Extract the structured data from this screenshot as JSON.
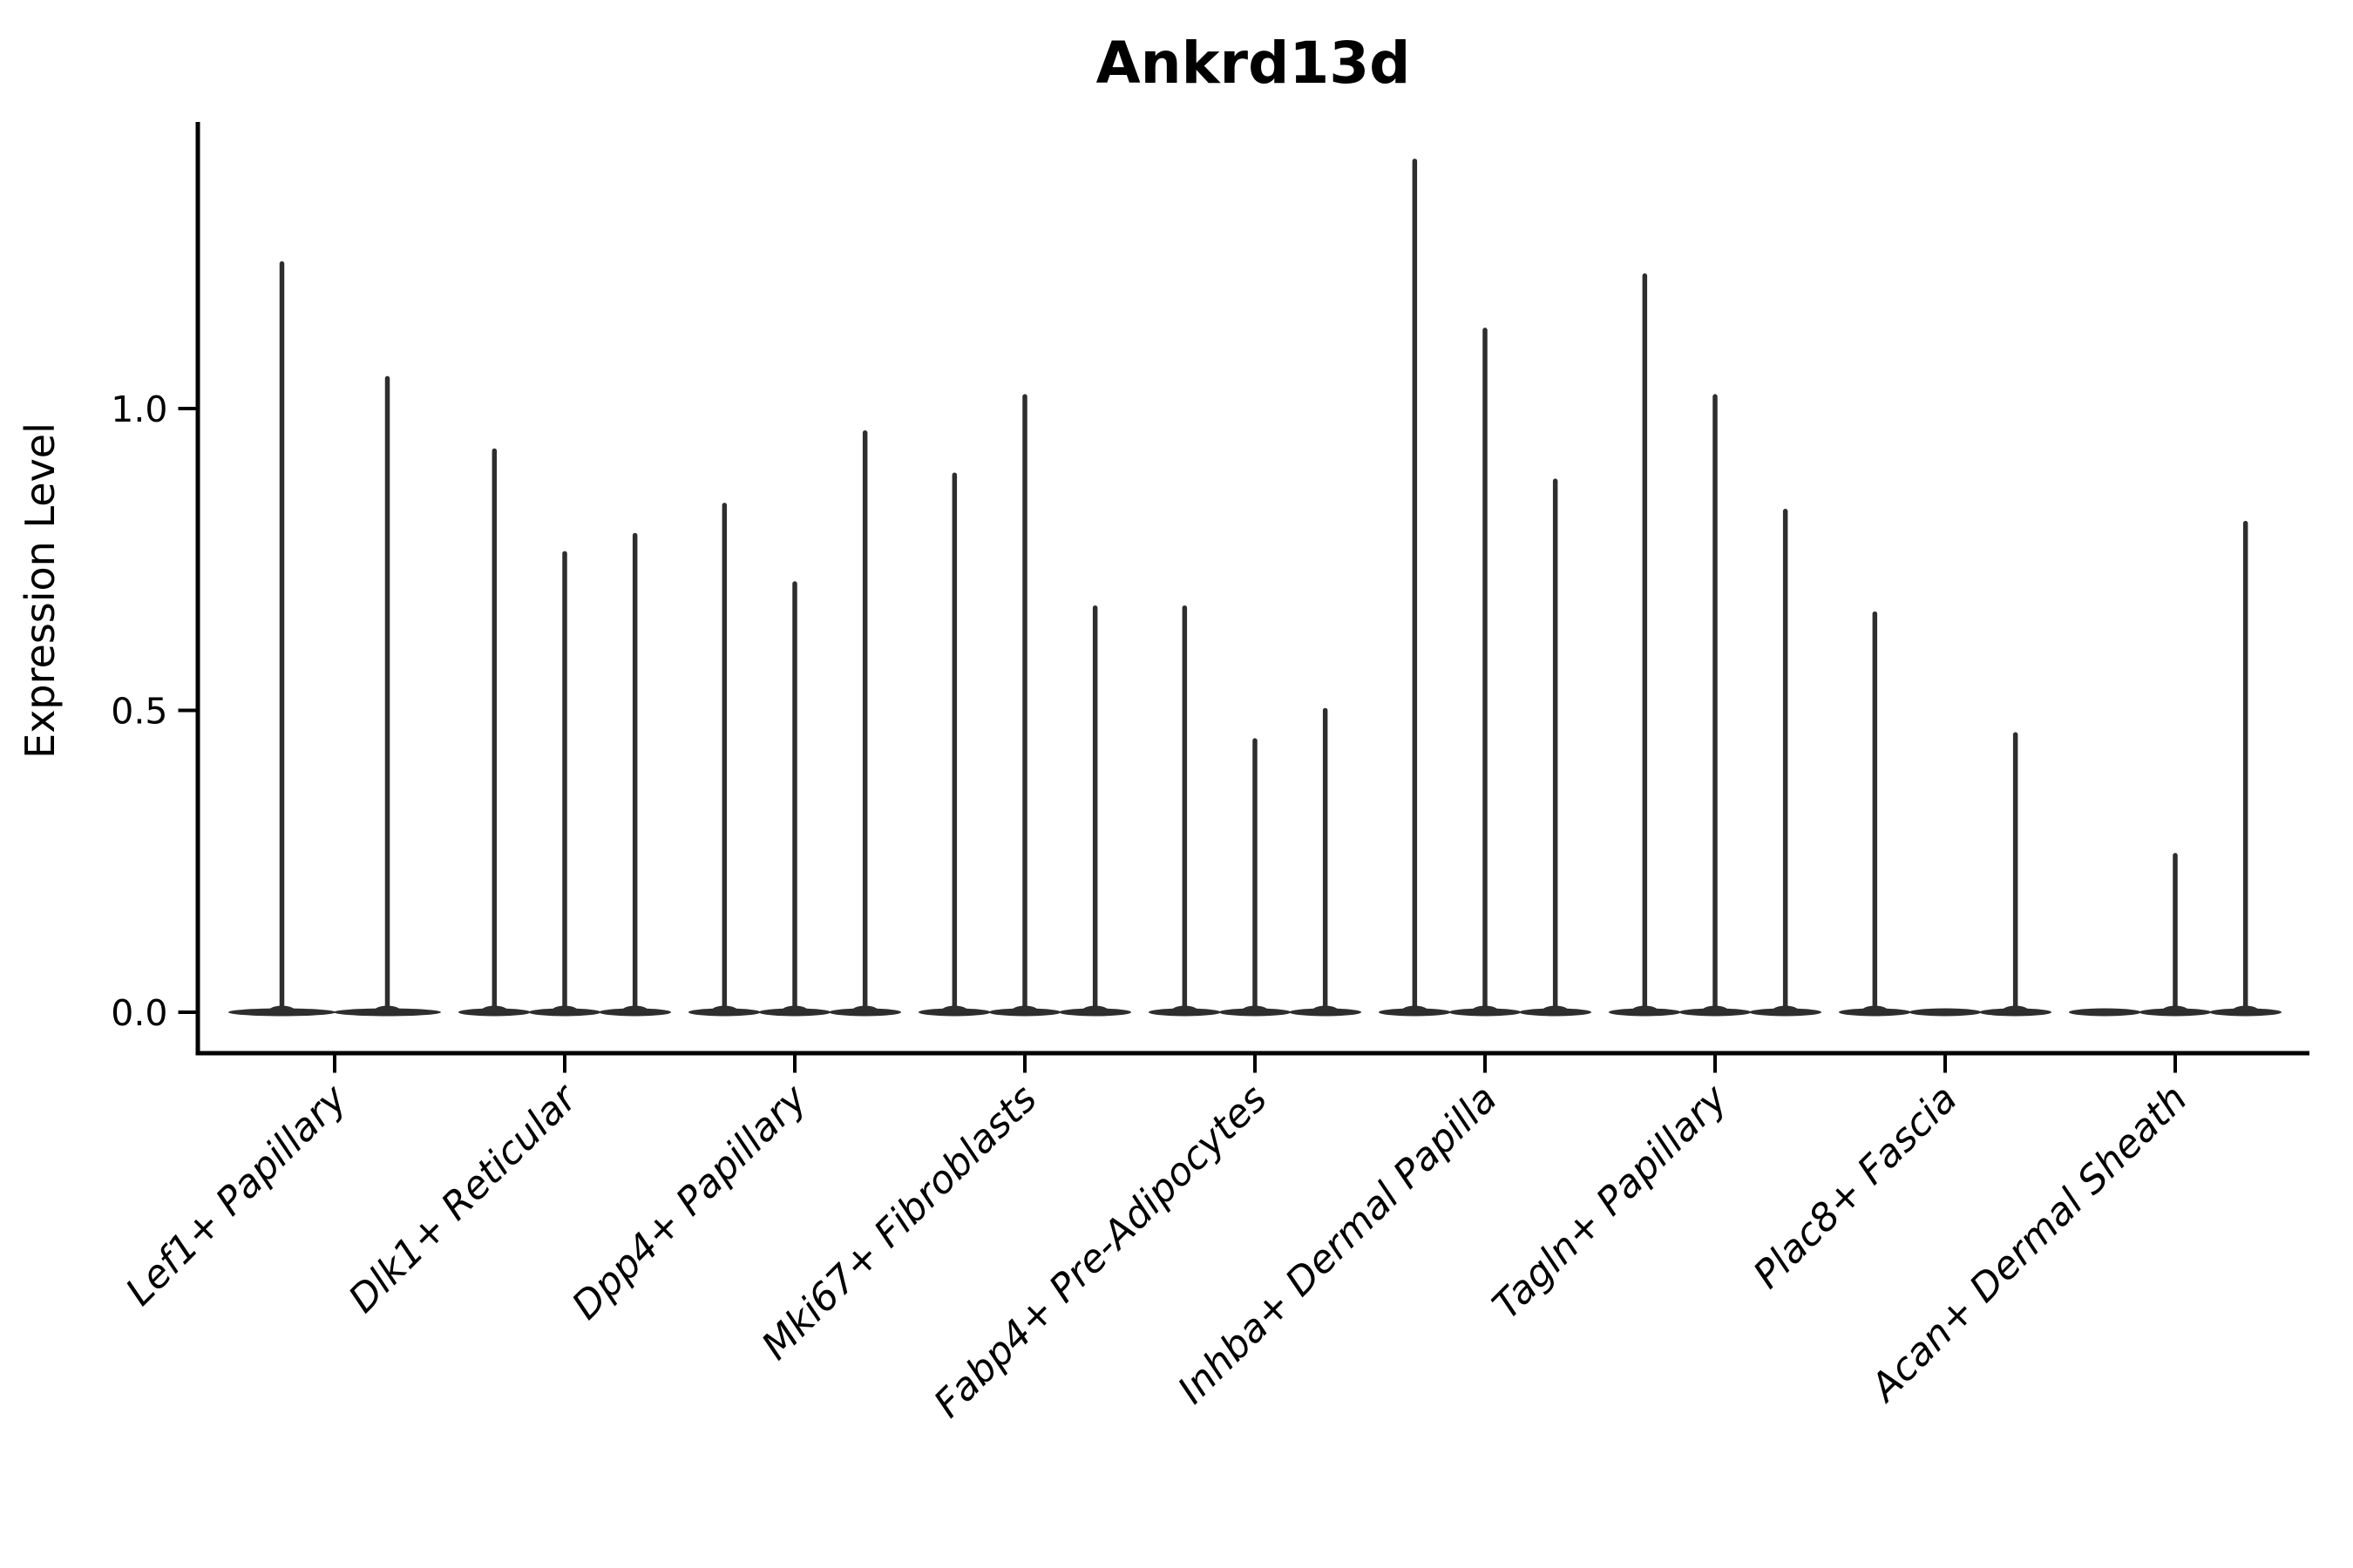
{
  "chart_data": {
    "type": "violin",
    "title": "Ankrd13d",
    "ylabel": "Expression Level",
    "xlabel": "",
    "yticks": [
      0.0,
      0.5,
      1.0
    ],
    "ytick_labels": [
      "0.0",
      "0.5",
      "1.0"
    ],
    "ylim": [
      -0.07,
      1.48
    ],
    "grid": false,
    "legend_position": "none",
    "colors": {
      "ink": "#2e2e2e",
      "axis": "#000000",
      "text": "#000000",
      "background": "#ffffff"
    },
    "categories": [
      "Lef1+ Papillary",
      "Dlk1+ Reticular",
      "Dpp4+ Papillary",
      "Mki67+ Fibroblasts",
      "Fabp4+ Pre-Adipocytes",
      "Inhba+ Dermal Papilla",
      "Tagln+ Papillary",
      "Plac8+ Fascia",
      "Acan+ Dermal Sheath"
    ],
    "groups": [
      {
        "label": "Lef1+ Papillary",
        "violin_max": [
          1.24,
          1.05
        ]
      },
      {
        "label": "Dlk1+ Reticular",
        "violin_max": [
          0.93,
          0.76,
          0.79
        ]
      },
      {
        "label": "Dpp4+ Papillary",
        "violin_max": [
          0.84,
          0.71,
          0.96
        ]
      },
      {
        "label": "Mki67+ Fibroblasts",
        "violin_max": [
          0.89,
          1.02,
          0.67
        ]
      },
      {
        "label": "Fabp4+ Pre-Adipocytes",
        "violin_max": [
          0.67,
          0.45,
          0.5
        ]
      },
      {
        "label": "Inhba+ Dermal Papilla",
        "violin_max": [
          1.41,
          1.13,
          0.88
        ]
      },
      {
        "label": "Tagln+ Papillary",
        "violin_max": [
          1.22,
          1.02,
          0.83
        ]
      },
      {
        "label": "Plac8+ Fascia",
        "violin_max": [
          0.66,
          0.0,
          0.46
        ]
      },
      {
        "label": "Acan+ Dermal Sheath",
        "violin_max": [
          0.0,
          0.26,
          0.81
        ]
      }
    ]
  }
}
